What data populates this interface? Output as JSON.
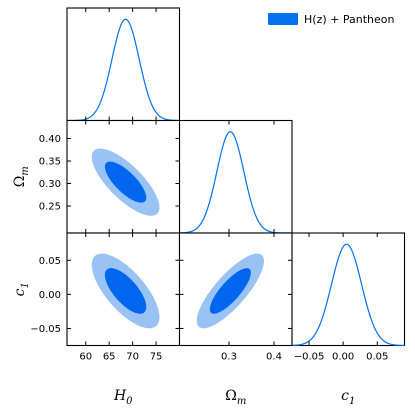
{
  "chart_data": {
    "type": "corner",
    "legend": {
      "label": "H(z) + Pantheon",
      "color": "#0072ee",
      "placement": "top-right"
    },
    "colors": {
      "line": "#0072ee",
      "inner": "#0066ee",
      "outer": "#99c2f5"
    },
    "parameters": [
      {
        "name": "H0",
        "label_main": "H",
        "label_sub": "0",
        "range": [
          56,
          80
        ],
        "ticks": [
          60,
          65,
          70,
          75
        ],
        "tick_labels": [
          "60",
          "65",
          "70",
          "75"
        ],
        "mean": 68.5,
        "sigma": 2.9
      },
      {
        "name": "Omega_m",
        "label_main": "Ω",
        "label_sub": "m",
        "range": [
          0.19,
          0.44
        ],
        "ticks": [
          0.25,
          0.3,
          0.35,
          0.4
        ],
        "tick_labels": [
          "0.25",
          "0.30",
          "0.35",
          "0.40"
        ],
        "x_ticks": [
          0.3,
          0.4
        ],
        "x_tick_labels": [
          "0.3",
          "0.4"
        ],
        "mean": 0.303,
        "sigma": 0.03
      },
      {
        "name": "c1",
        "label_main": "c",
        "label_sub": "1",
        "range": [
          -0.075,
          0.09
        ],
        "ticks": [
          -0.05,
          0.0,
          0.05
        ],
        "tick_labels": [
          "−0.05",
          "0.00",
          "0.05"
        ],
        "x_ticks": [
          -0.05,
          0.0,
          0.05
        ],
        "x_tick_labels": [
          "−0.05",
          "0.00",
          "0.05"
        ],
        "mean": 0.005,
        "sigma": 0.022
      }
    ],
    "correlations": {
      "H0_Omega_m": -0.75,
      "H0_c1": -0.7,
      "Omega_m_c1": 0.8
    },
    "contour_levels": [
      "68%",
      "95%"
    ]
  }
}
